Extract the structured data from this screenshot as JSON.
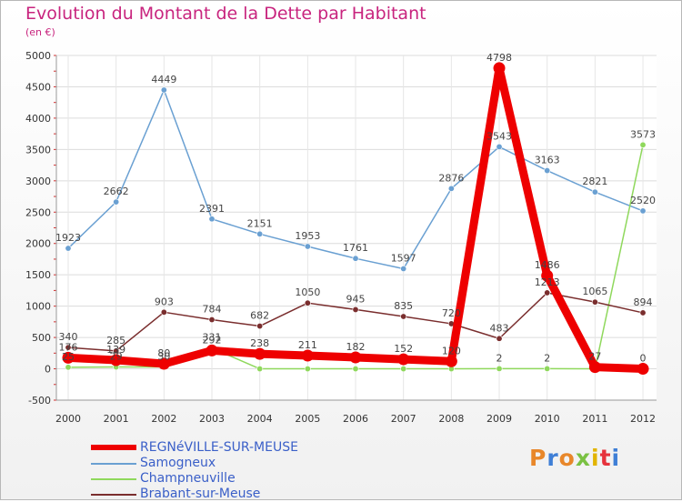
{
  "chart_data": {
    "type": "line",
    "title": "Evolution du Montant de la Dette par Habitant",
    "subtitle": "(en €)",
    "x": [
      "2000",
      "2001",
      "2002",
      "2003",
      "2004",
      "2005",
      "2006",
      "2007",
      "2008",
      "2009",
      "2010",
      "2011",
      "2012"
    ],
    "ylim": [
      -500,
      5000
    ],
    "yticks": [
      "-500",
      "0",
      "500",
      "1000",
      "1500",
      "2000",
      "2500",
      "3000",
      "3500",
      "4000",
      "4500",
      "5000"
    ],
    "grid": true,
    "legend_position": "bottom-left",
    "series": [
      {
        "name": "REGNéVILLE-SUR-MEUSE",
        "color": "#ee0000",
        "values": [
          176,
          139,
          80,
          292,
          238,
          211,
          182,
          152,
          120,
          4798,
          1486,
          27,
          0
        ]
      },
      {
        "name": "Samogneux",
        "color": "#6aa0d2",
        "values": [
          1923,
          2662,
          4449,
          2391,
          2151,
          1953,
          1761,
          1597,
          2876,
          3543,
          3163,
          2821,
          2520
        ]
      },
      {
        "name": "Champneuville",
        "color": "#8fd85c",
        "values": [
          25,
          29,
          30,
          331,
          0,
          0,
          0,
          0,
          0,
          2,
          2,
          0,
          3573
        ]
      },
      {
        "name": "Brabant-sur-Meuse",
        "color": "#7a2e2e",
        "values": [
          340,
          285,
          903,
          784,
          682,
          1050,
          945,
          835,
          720,
          483,
          1213,
          1065,
          894
        ]
      }
    ],
    "data_labels": [
      [
        "176",
        "139",
        "80",
        "292",
        "238",
        "211",
        "182",
        "152",
        "120",
        "4798",
        "1486",
        "27",
        "0"
      ],
      [
        "1923",
        "2662",
        "4449",
        "2391",
        "2151",
        "1953",
        "1761",
        "1597",
        "2876",
        "3543",
        "3163",
        "2821",
        "2520"
      ],
      [
        "25",
        "29",
        "30",
        "331",
        "",
        "",
        "",
        "",
        "",
        "2",
        "2",
        "",
        "3573"
      ],
      [
        "340",
        "285",
        "903",
        "784",
        "682",
        "1050",
        "945",
        "835",
        "720",
        "483",
        "1213",
        "1065",
        "894"
      ]
    ]
  },
  "logo": {
    "text": "Proxiti",
    "colors": [
      "#e8872a",
      "#3f7fd6",
      "#e8872a",
      "#7ac143",
      "#e2b400",
      "#e6323c",
      "#3f7fd6"
    ]
  }
}
